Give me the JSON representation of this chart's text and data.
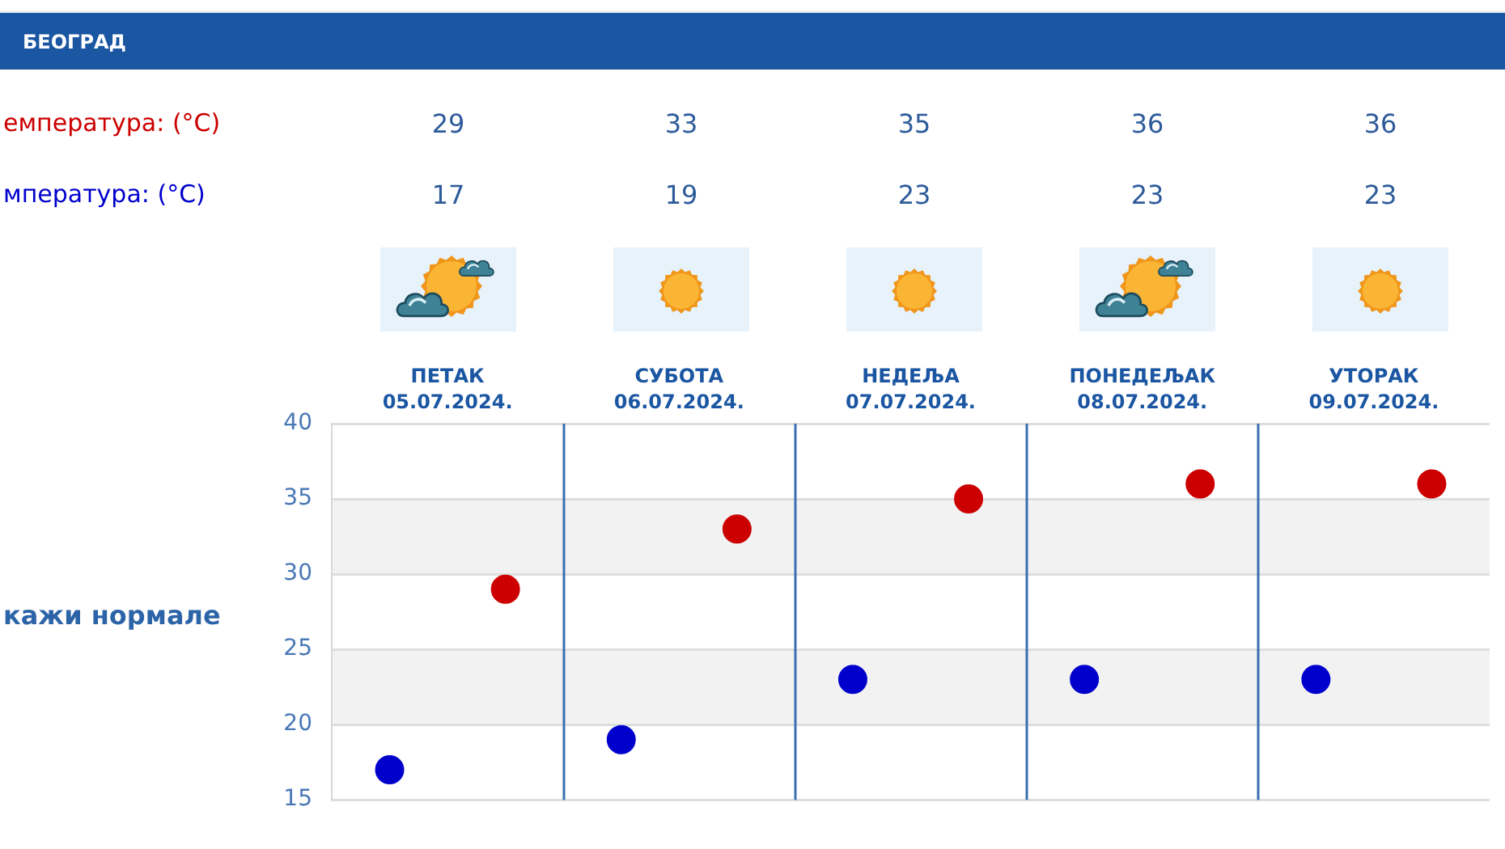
{
  "chart_data": {
    "type": "scatter",
    "title": "БЕОГРАД",
    "categories": [
      "ПЕТАК 05.07.2024.",
      "СУБОТА 06.07.2024.",
      "НЕДЕЉА 07.07.2024.",
      "ПОНЕДЕЉАК 08.07.2024.",
      "УТОРАК 09.07.2024."
    ],
    "series": [
      {
        "name": "емпература: (°C)",
        "color": "#cc0000",
        "values": [
          29,
          33,
          35,
          36,
          36
        ]
      },
      {
        "name": "мпература: (°C)",
        "color": "#0000cc",
        "values": [
          17,
          19,
          23,
          23,
          23
        ]
      }
    ],
    "ylim": [
      15,
      40
    ],
    "yticks": [
      15,
      20,
      25,
      30,
      35,
      40
    ],
    "grid": true,
    "marker": "circle",
    "data_labels": true,
    "bands": [
      {
        "axis": "y",
        "from": 20,
        "to": 25,
        "color": "#f2f2f2"
      },
      {
        "axis": "y",
        "from": 30,
        "to": 35,
        "color": "#f2f2f2"
      }
    ],
    "annotations": [
      "кажи нормале"
    ]
  }
}
